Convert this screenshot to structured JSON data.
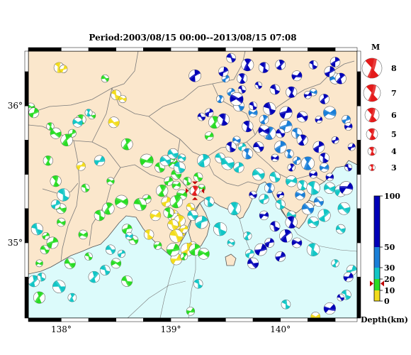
{
  "title": "Period:2003/08/15 00:00--2013/08/15 07:08",
  "map": {
    "x_ticks": [
      {
        "lon": 138,
        "label": "138°"
      },
      {
        "lon": 139,
        "label": "139°"
      },
      {
        "lon": 140,
        "label": "140°"
      }
    ],
    "y_ticks": [
      {
        "lat": 36,
        "label": "36°"
      },
      {
        "lat": 35,
        "label": "35°"
      }
    ],
    "lon_range": [
      137.7,
      140.7
    ],
    "lat_range": [
      34.45,
      36.4
    ],
    "colors": {
      "land": "#fbe7cc",
      "sea": "#dcfbfb",
      "prefecture_border": "#777777",
      "coastline": "#555555"
    },
    "latest_event": {
      "lon": 139.22,
      "lat": 35.38,
      "magnitude": 4.3,
      "depth_km": 16
    }
  },
  "magnitude_legend": {
    "title": "M",
    "entries": [
      {
        "magnitude": 8,
        "label": "8"
      },
      {
        "magnitude": 7,
        "label": "7"
      },
      {
        "magnitude": 6,
        "label": "6"
      },
      {
        "magnitude": 5,
        "label": "5"
      },
      {
        "magnitude": 4,
        "label": "4"
      },
      {
        "magnitude": 3,
        "label": "3"
      }
    ],
    "color": "#e41b1b"
  },
  "depth_scale": {
    "label": "Depth(km)",
    "ticks": [
      {
        "value": 100,
        "label": "100"
      },
      {
        "value": 50,
        "label": "50"
      },
      {
        "value": 30,
        "label": "30"
      },
      {
        "value": 20,
        "label": "20"
      },
      {
        "value": 10,
        "label": "10"
      },
      {
        "value": 0,
        "label": "0"
      }
    ],
    "bands": [
      {
        "from": 0,
        "to": 10,
        "color": "#f2dc1c"
      },
      {
        "from": 10,
        "to": 20,
        "color": "#29dd24"
      },
      {
        "from": 20,
        "to": 30,
        "color": "#12c6c6"
      },
      {
        "from": 30,
        "to": 50,
        "color": "#1a7fd8"
      },
      {
        "from": 50,
        "to": 100,
        "color": "#0000b8"
      }
    ],
    "latest_marker_depth_km": 16
  },
  "chart_data": {
    "type": "scatter",
    "title": "Period:2003/08/15 00:00--2013/08/15 07:08",
    "x_axis": "longitude",
    "y_axis": "latitude",
    "xlim": [
      137.7,
      140.7
    ],
    "ylim": [
      34.45,
      36.4
    ],
    "series": [
      {
        "name": "shallow (0-10 km)",
        "color": "#f2dc1c",
        "points": [
          [
            137.98,
            36.28
          ],
          [
            138.02,
            36.27
          ],
          [
            138.5,
            36.08
          ],
          [
            138.56,
            36.05
          ],
          [
            138.48,
            35.88
          ],
          [
            138.18,
            35.56
          ],
          [
            139.02,
            35.2
          ],
          [
            139.05,
            35.18
          ],
          [
            139.08,
            35.16
          ],
          [
            139.02,
            35.13
          ],
          [
            139.1,
            35.08
          ],
          [
            139.05,
            35.05
          ],
          [
            139.2,
            34.98
          ],
          [
            139.15,
            34.95
          ],
          [
            138.8,
            35.06
          ],
          [
            139.05,
            34.88
          ],
          [
            139.18,
            35.26
          ],
          [
            138.96,
            35.3
          ],
          [
            138.86,
            35.2
          ],
          [
            139.12,
            35.1
          ],
          [
            140.32,
            34.46
          ]
        ]
      },
      {
        "name": "10-20 km",
        "color": "#29dd24",
        "points": [
          [
            138.4,
            36.2
          ],
          [
            137.72,
            35.99
          ],
          [
            137.75,
            35.95
          ],
          [
            137.95,
            35.8
          ],
          [
            138.05,
            35.75
          ],
          [
            138.1,
            35.8
          ],
          [
            138.18,
            35.9
          ],
          [
            138.28,
            35.93
          ],
          [
            138.6,
            35.72
          ],
          [
            138.78,
            35.6
          ],
          [
            138.9,
            35.55
          ],
          [
            139.02,
            35.58
          ],
          [
            139.05,
            35.5
          ],
          [
            138.98,
            35.45
          ],
          [
            138.92,
            35.38
          ],
          [
            138.78,
            35.32
          ],
          [
            138.72,
            35.28
          ],
          [
            138.55,
            35.3
          ],
          [
            138.43,
            35.25
          ],
          [
            138.35,
            35.2
          ],
          [
            138.2,
            35.06
          ],
          [
            138.0,
            35.15
          ],
          [
            137.92,
            35.0
          ],
          [
            137.85,
            34.95
          ],
          [
            137.8,
            34.85
          ],
          [
            138.08,
            34.85
          ],
          [
            138.25,
            34.9
          ],
          [
            138.5,
            34.85
          ],
          [
            138.6,
            34.72
          ],
          [
            138.88,
            34.98
          ],
          [
            139.02,
            34.95
          ],
          [
            139.12,
            34.9
          ],
          [
            139.22,
            34.95
          ],
          [
            139.3,
            34.92
          ],
          [
            139.05,
            35.42
          ],
          [
            139.15,
            35.45
          ],
          [
            139.2,
            35.38
          ],
          [
            139.1,
            35.35
          ],
          [
            139.05,
            35.3
          ],
          [
            138.98,
            35.22
          ],
          [
            139.25,
            35.48
          ],
          [
            139.28,
            35.4
          ],
          [
            139.35,
            35.78
          ],
          [
            139.4,
            35.88
          ],
          [
            138.22,
            35.4
          ],
          [
            137.95,
            35.45
          ],
          [
            137.88,
            35.6
          ],
          [
            138.0,
            35.25
          ],
          [
            137.86,
            35.05
          ],
          [
            138.6,
            35.1
          ],
          [
            138.66,
            35.02
          ],
          [
            137.8,
            34.6
          ],
          [
            139.0,
            35.62
          ],
          [
            138.45,
            35.45
          ],
          [
            137.9,
            35.85
          ],
          [
            139.18,
            34.5
          ]
        ]
      },
      {
        "name": "20-30 km",
        "color": "#12c6c6",
        "points": [
          [
            138.25,
            35.95
          ],
          [
            138.15,
            35.88
          ],
          [
            138.95,
            35.6
          ],
          [
            139.02,
            35.65
          ],
          [
            139.1,
            35.62
          ],
          [
            139.08,
            35.55
          ],
          [
            139.3,
            35.6
          ],
          [
            139.45,
            35.62
          ],
          [
            139.52,
            35.58
          ],
          [
            139.62,
            35.55
          ],
          [
            139.8,
            35.5
          ],
          [
            139.95,
            35.48
          ],
          [
            140.1,
            35.45
          ],
          [
            140.2,
            35.42
          ],
          [
            140.3,
            35.4
          ],
          [
            140.45,
            35.4
          ],
          [
            140.55,
            35.38
          ],
          [
            139.2,
            35.2
          ],
          [
            139.28,
            35.15
          ],
          [
            138.62,
            35.05
          ],
          [
            138.4,
            34.8
          ],
          [
            138.3,
            34.75
          ],
          [
            137.75,
            34.72
          ],
          [
            137.82,
            34.75
          ],
          [
            139.25,
            34.7
          ],
          [
            139.45,
            35.1
          ],
          [
            139.55,
            35.0
          ],
          [
            139.7,
            35.05
          ],
          [
            139.72,
            34.92
          ],
          [
            140.1,
            35.2
          ],
          [
            140.3,
            35.15
          ],
          [
            140.4,
            35.2
          ],
          [
            140.55,
            35.1
          ],
          [
            140.3,
            34.95
          ],
          [
            140.5,
            34.85
          ],
          [
            140.65,
            34.8
          ],
          [
            140.6,
            34.62
          ],
          [
            140.05,
            34.55
          ],
          [
            138.55,
            34.92
          ],
          [
            139.35,
            35.3
          ],
          [
            139.58,
            35.25
          ],
          [
            139.85,
            35.32
          ],
          [
            140.0,
            35.28
          ],
          [
            139.65,
            35.7
          ],
          [
            138.02,
            35.35
          ],
          [
            138.35,
            35.6
          ],
          [
            137.95,
            35.28
          ],
          [
            137.78,
            35.1
          ],
          [
            138.1,
            34.6
          ],
          [
            137.98,
            34.68
          ],
          [
            138.45,
            34.95
          ],
          [
            140.58,
            35.25
          ]
        ]
      },
      {
        "name": "30-50 km",
        "color": "#1a7fd8",
        "points": [
          [
            139.5,
            36.2
          ],
          [
            139.55,
            36.1
          ],
          [
            139.62,
            36.0
          ],
          [
            139.75,
            35.95
          ],
          [
            139.85,
            35.9
          ],
          [
            139.9,
            35.8
          ],
          [
            140.0,
            35.7
          ],
          [
            140.08,
            35.65
          ],
          [
            140.15,
            35.6
          ],
          [
            140.25,
            35.58
          ],
          [
            140.4,
            35.55
          ],
          [
            139.7,
            35.65
          ],
          [
            139.6,
            35.75
          ],
          [
            140.05,
            35.85
          ],
          [
            140.15,
            35.8
          ],
          [
            140.5,
            36.2
          ],
          [
            139.45,
            36.05
          ],
          [
            140.35,
            35.3
          ],
          [
            140.25,
            35.25
          ],
          [
            140.18,
            35.35
          ],
          [
            139.9,
            35.4
          ],
          [
            140.45,
            35.95
          ],
          [
            140.6,
            35.9
          ],
          [
            140.3,
            36.1
          ]
        ]
      },
      {
        "name": "50-100 km",
        "color": "#0000b8",
        "points": [
          [
            139.55,
            36.35
          ],
          [
            139.7,
            36.3
          ],
          [
            139.85,
            36.28
          ],
          [
            140.0,
            36.3
          ],
          [
            140.15,
            36.22
          ],
          [
            140.3,
            36.3
          ],
          [
            140.45,
            36.25
          ],
          [
            140.55,
            36.2
          ],
          [
            139.65,
            36.2
          ],
          [
            139.8,
            36.15
          ],
          [
            139.95,
            36.12
          ],
          [
            140.1,
            36.1
          ],
          [
            140.25,
            36.08
          ],
          [
            140.4,
            36.05
          ],
          [
            139.6,
            36.05
          ],
          [
            139.75,
            36.0
          ],
          [
            139.9,
            35.98
          ],
          [
            140.05,
            35.95
          ],
          [
            140.2,
            35.92
          ],
          [
            140.35,
            35.9
          ],
          [
            139.7,
            35.85
          ],
          [
            139.85,
            35.82
          ],
          [
            140.0,
            35.8
          ],
          [
            140.2,
            35.75
          ],
          [
            140.35,
            35.7
          ],
          [
            140.5,
            35.75
          ],
          [
            140.62,
            35.85
          ],
          [
            140.65,
            35.7
          ],
          [
            139.55,
            35.7
          ],
          [
            139.8,
            35.7
          ],
          [
            139.95,
            35.62
          ],
          [
            140.1,
            35.55
          ],
          [
            140.3,
            35.5
          ],
          [
            140.45,
            35.48
          ],
          [
            139.75,
            35.35
          ],
          [
            139.85,
            35.2
          ],
          [
            139.95,
            35.12
          ],
          [
            140.05,
            35.05
          ],
          [
            139.9,
            35.0
          ],
          [
            140.0,
            34.9
          ],
          [
            139.82,
            34.95
          ],
          [
            139.75,
            34.85
          ],
          [
            140.15,
            35.0
          ],
          [
            139.65,
            36.12
          ],
          [
            139.48,
            36.25
          ],
          [
            139.22,
            36.22
          ],
          [
            139.35,
            35.95
          ],
          [
            139.28,
            35.92
          ],
          [
            139.48,
            35.9
          ],
          [
            140.62,
            34.75
          ],
          [
            140.55,
            34.6
          ],
          [
            140.45,
            34.52
          ],
          [
            140.62,
            35.55
          ],
          [
            140.4,
            35.62
          ],
          [
            140.0,
            35.35
          ],
          [
            140.5,
            36.32
          ],
          [
            140.1,
            35.15
          ],
          [
            140.6,
            35.4
          ]
        ]
      }
    ]
  }
}
